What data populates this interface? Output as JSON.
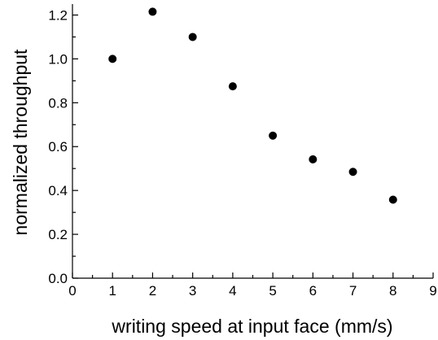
{
  "chart_data": {
    "type": "scatter",
    "title": "",
    "xlabel": "writing speed at input face (mm/s)",
    "ylabel": "normalized throughput",
    "xlim": [
      0,
      9
    ],
    "ylim": [
      0.0,
      1.25
    ],
    "x_ticks": [
      0,
      1,
      2,
      3,
      4,
      5,
      6,
      7,
      8,
      9
    ],
    "x_tick_labels": [
      "0",
      "1",
      "2",
      "3",
      "4",
      "5",
      "6",
      "7",
      "8",
      "9"
    ],
    "y_ticks": [
      0.0,
      0.2,
      0.4,
      0.6,
      0.8,
      1.0,
      1.2
    ],
    "y_tick_labels": [
      "0.0",
      "0.2",
      "0.4",
      "0.6",
      "0.8",
      "1.0",
      "1.2"
    ],
    "grid": false,
    "legend": "none",
    "marker_color": "#000000",
    "series": [
      {
        "x": [
          1,
          2,
          3,
          4,
          5,
          6,
          7,
          8
        ],
        "y": [
          1.0,
          1.215,
          1.1,
          0.875,
          0.65,
          0.542,
          0.485,
          0.358
        ]
      }
    ]
  }
}
